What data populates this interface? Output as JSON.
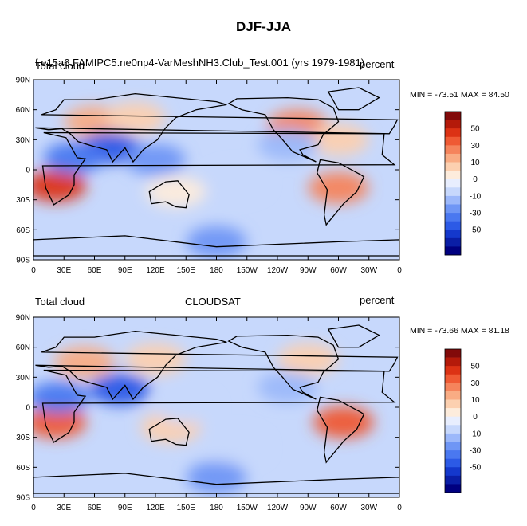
{
  "figure": {
    "title": "DJF-JJA"
  },
  "palette": [
    "#000080",
    "#0a1ea6",
    "#1438cc",
    "#2c5ae6",
    "#4a78f0",
    "#6f96f5",
    "#9cb8fa",
    "#c7d8fc",
    "#e8eefe",
    "#fdecdc",
    "#fcd0b0",
    "#f9ac84",
    "#f5845c",
    "#ef5a34",
    "#dc3214",
    "#b41a0a",
    "#820a0a"
  ],
  "chart_data": [
    {
      "type": "heatmap",
      "variable_label": "Total cloud",
      "case_label": "f.e15a6.FAMIPC5.ne0np4-VarMeshNH3.Club_Test.001 (yrs 1979-1981)",
      "units_label": "percent",
      "stats_label": "MIN = -73.51 MAX =  84.50",
      "min": -73.51,
      "max": 84.5,
      "xlim": [
        0,
        360
      ],
      "ylim": [
        -90,
        90
      ],
      "x_ticks": [
        "0",
        "30E",
        "60E",
        "90E",
        "120E",
        "150E",
        "180",
        "150W",
        "120W",
        "90W",
        "60W",
        "30W",
        "0"
      ],
      "y_ticks": [
        "90N",
        "60N",
        "30N",
        "0",
        "30S",
        "60S",
        "90S"
      ],
      "colorbar_labels": [
        "50",
        "30",
        "10",
        "0",
        "-10",
        "-30",
        "-50"
      ],
      "regions": [
        {
          "lon": 60,
          "lat": 48,
          "value": 35
        },
        {
          "lon": 100,
          "lat": 52,
          "value": 25
        },
        {
          "lon": 260,
          "lat": 44,
          "value": 40
        },
        {
          "lon": 300,
          "lat": 30,
          "value": 25
        },
        {
          "lon": 22,
          "lat": -16,
          "value": 60
        },
        {
          "lon": 300,
          "lat": -18,
          "value": 40
        },
        {
          "lon": 140,
          "lat": -22,
          "value": 15
        },
        {
          "lon": 75,
          "lat": 22,
          "value": -45
        },
        {
          "lon": 40,
          "lat": 12,
          "value": -35
        },
        {
          "lon": 120,
          "lat": 10,
          "value": -25
        },
        {
          "lon": 250,
          "lat": 25,
          "value": -20
        },
        {
          "lon": 200,
          "lat": -12,
          "value": -8
        },
        {
          "lon": 180,
          "lat": -72,
          "value": -25
        }
      ]
    },
    {
      "type": "heatmap",
      "variable_label": "Total cloud",
      "case_label": "CLOUDSAT",
      "units_label": "percent",
      "stats_label": "MIN = -73.66 MAX =  81.18",
      "min": -73.66,
      "max": 81.18,
      "xlim": [
        0,
        360
      ],
      "ylim": [
        -90,
        90
      ],
      "x_ticks": [
        "0",
        "30E",
        "60E",
        "90E",
        "120E",
        "150E",
        "180",
        "150W",
        "120W",
        "90W",
        "60W",
        "30W",
        "0"
      ],
      "y_ticks": [
        "90N",
        "60N",
        "30N",
        "0",
        "30S",
        "60S",
        "90S"
      ],
      "colorbar_labels": [
        "50",
        "30",
        "10",
        "0",
        "-10",
        "-30",
        "-50"
      ],
      "regions": [
        {
          "lon": 50,
          "lat": 45,
          "value": 30
        },
        {
          "lon": 120,
          "lat": 48,
          "value": 20
        },
        {
          "lon": 270,
          "lat": 48,
          "value": 25
        },
        {
          "lon": 22,
          "lat": -15,
          "value": 55
        },
        {
          "lon": 305,
          "lat": -15,
          "value": 55
        },
        {
          "lon": 135,
          "lat": -20,
          "value": 25
        },
        {
          "lon": 85,
          "lat": 18,
          "value": -45
        },
        {
          "lon": 25,
          "lat": 10,
          "value": -35
        },
        {
          "lon": 150,
          "lat": 0,
          "value": -10
        },
        {
          "lon": 250,
          "lat": 20,
          "value": -15
        },
        {
          "lon": 200,
          "lat": -40,
          "value": -10
        },
        {
          "lon": 180,
          "lat": -70,
          "value": -25
        }
      ]
    }
  ]
}
